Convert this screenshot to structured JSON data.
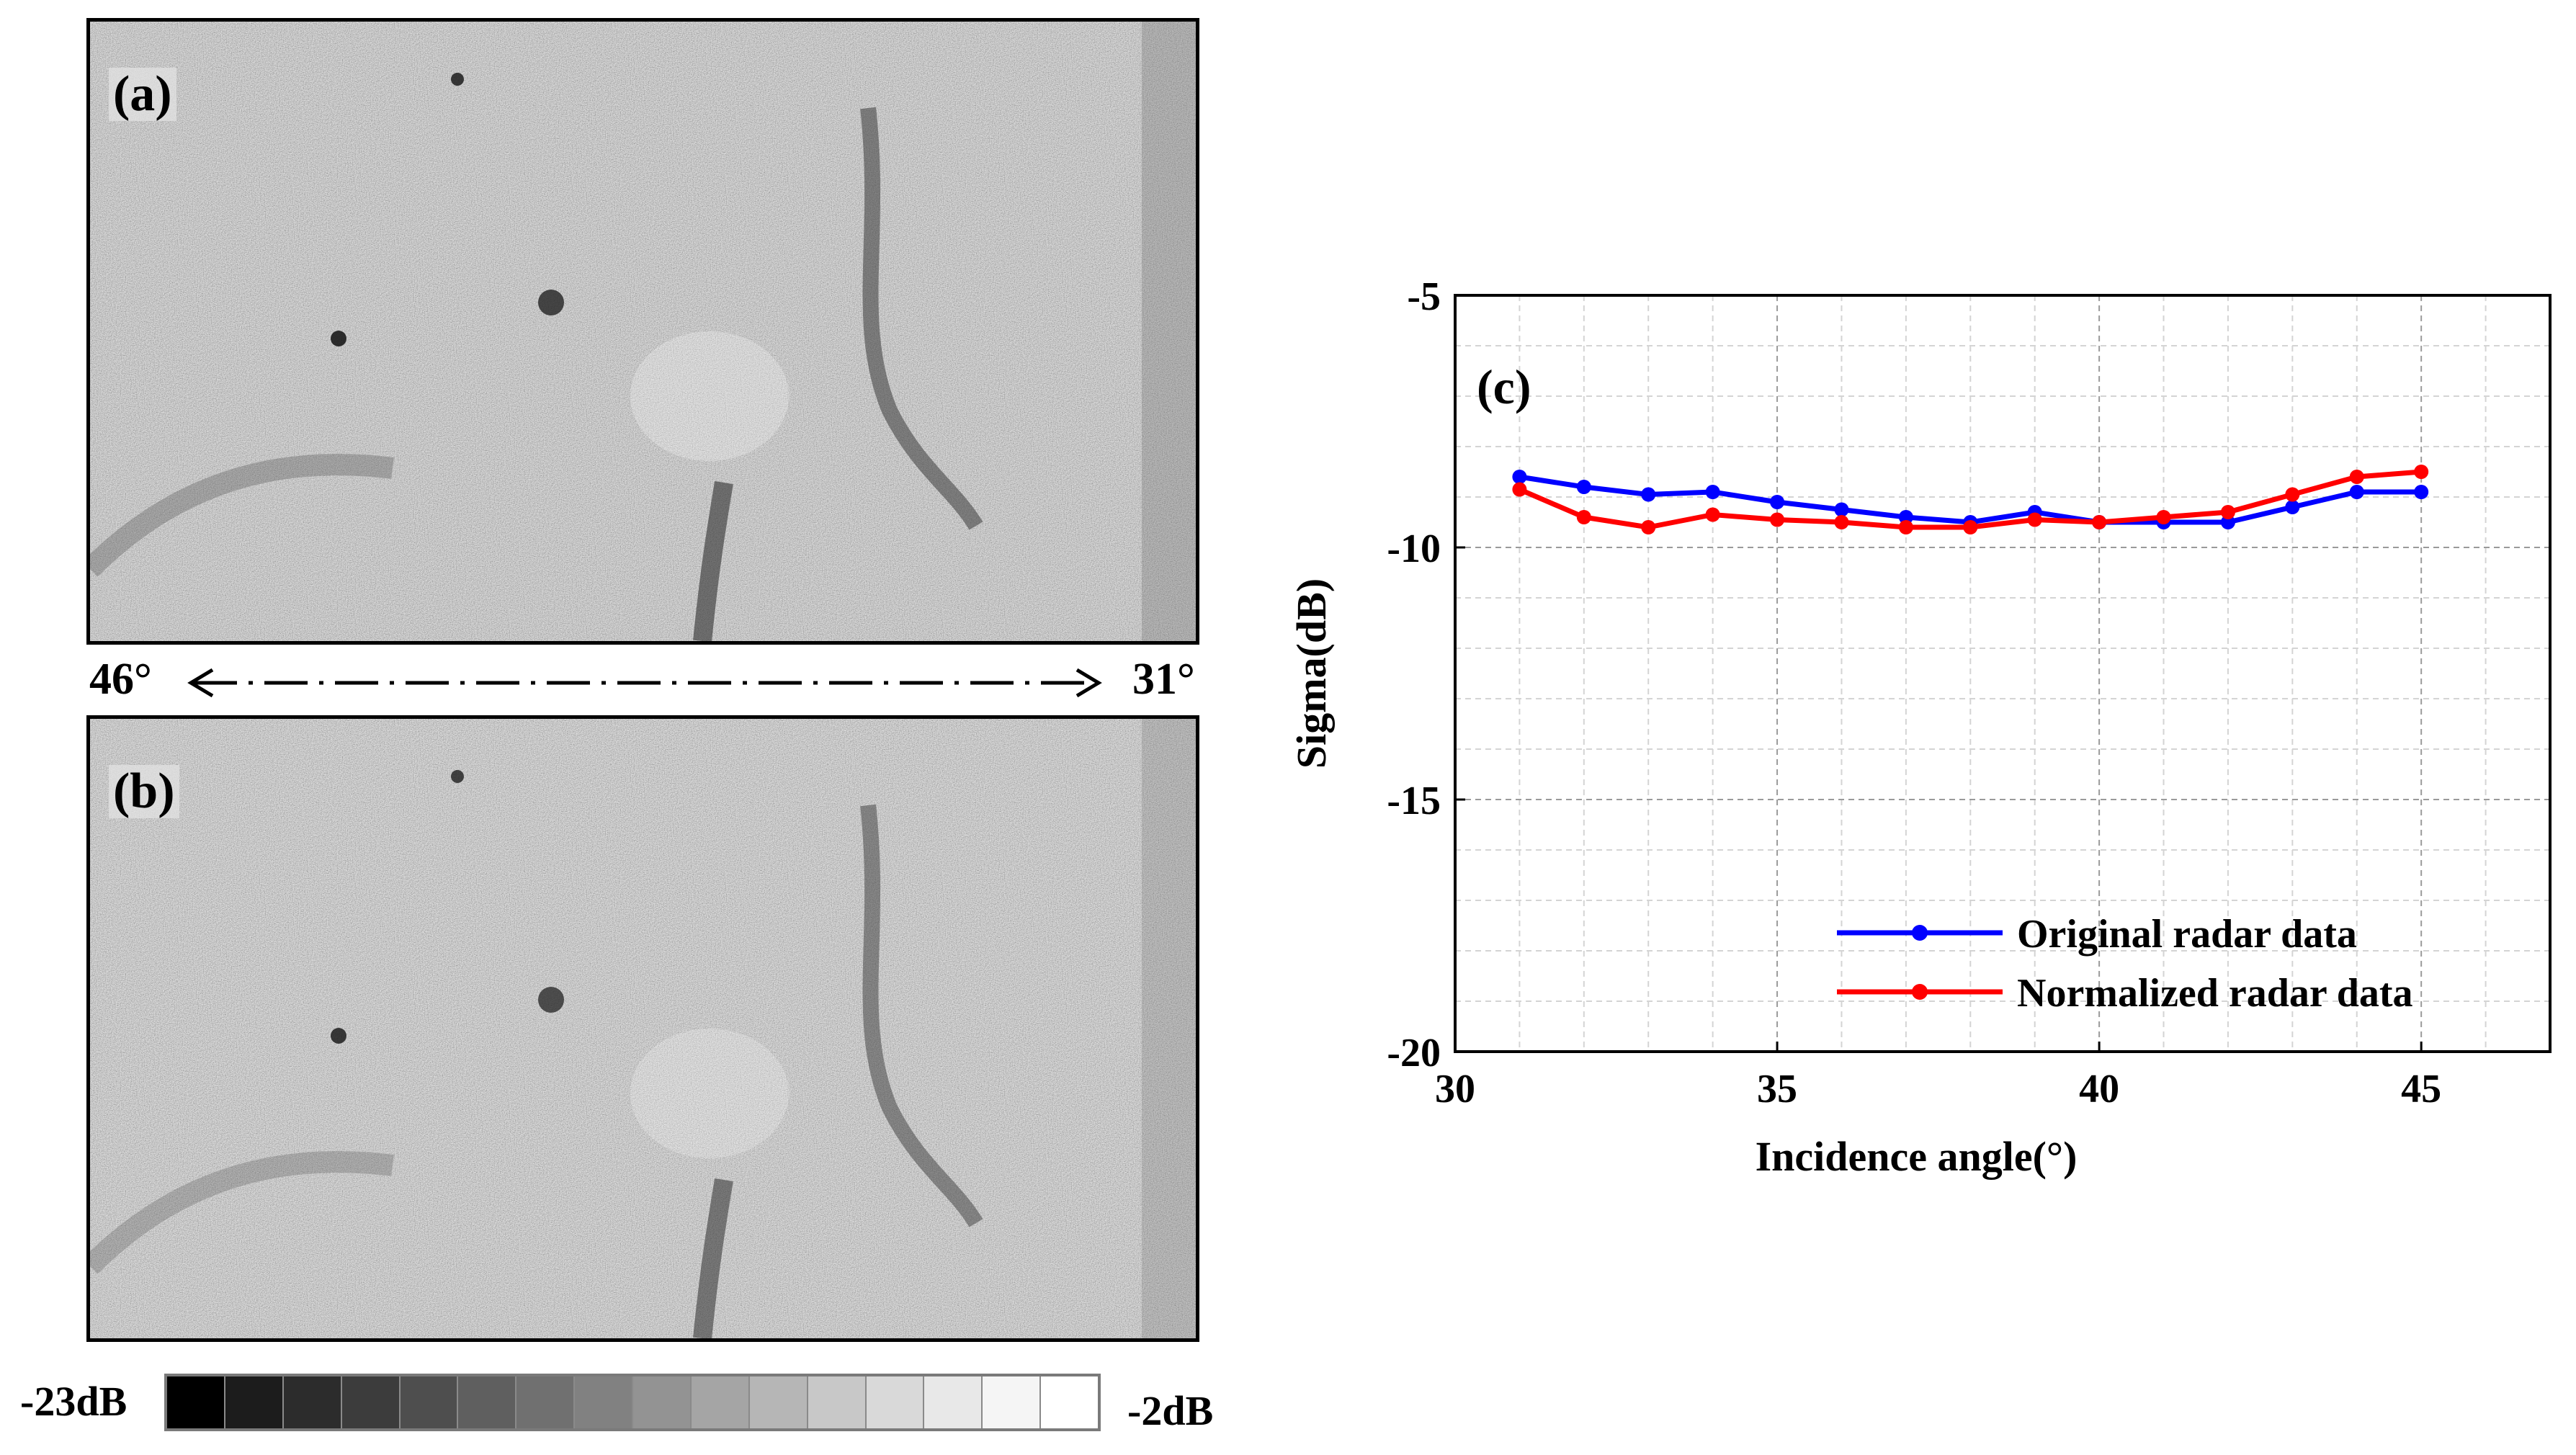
{
  "panels": {
    "a_label": "(a)",
    "b_label": "(b)"
  },
  "direction": {
    "left": "46°",
    "right": "31°"
  },
  "colorbar": {
    "min_label": "-23dB",
    "max_label": "-2dB",
    "colors": [
      "#000000",
      "#1c1c1c",
      "#2c2c2c",
      "#3c3c3c",
      "#4e4e4e",
      "#5f5f5f",
      "#707070",
      "#818181",
      "#939393",
      "#a5a5a5",
      "#b6b6b6",
      "#c8c8c8",
      "#d9d9d9",
      "#e8e8e8",
      "#f5f5f5",
      "#ffffff"
    ]
  },
  "chart_data": {
    "type": "line",
    "panel_label": "(c)",
    "xlabel": "Incidence angle(°)",
    "ylabel": "Sigma(dB)",
    "xlim": [
      30,
      47
    ],
    "ylim": [
      -20,
      -5
    ],
    "xticks": [
      30,
      35,
      40,
      45
    ],
    "yticks": [
      -5,
      -10,
      -15,
      -20
    ],
    "grid": true,
    "legend_position": "bottom-right",
    "x": [
      31,
      32,
      33,
      34,
      35,
      36,
      37,
      38,
      39,
      40,
      41,
      42,
      43,
      44,
      45
    ],
    "series": [
      {
        "name": "Original radar data",
        "color": "#0000ff",
        "values": [
          -8.6,
          -8.8,
          -8.95,
          -8.9,
          -9.1,
          -9.25,
          -9.4,
          -9.5,
          -9.3,
          -9.5,
          -9.5,
          -9.5,
          -9.2,
          -8.9,
          -8.9
        ]
      },
      {
        "name": "Normalized radar data",
        "color": "#ff0000",
        "values": [
          -8.85,
          -9.4,
          -9.6,
          -9.35,
          -9.45,
          -9.5,
          -9.6,
          -9.6,
          -9.45,
          -9.5,
          -9.4,
          -9.3,
          -8.95,
          -8.6,
          -8.5
        ]
      }
    ]
  }
}
